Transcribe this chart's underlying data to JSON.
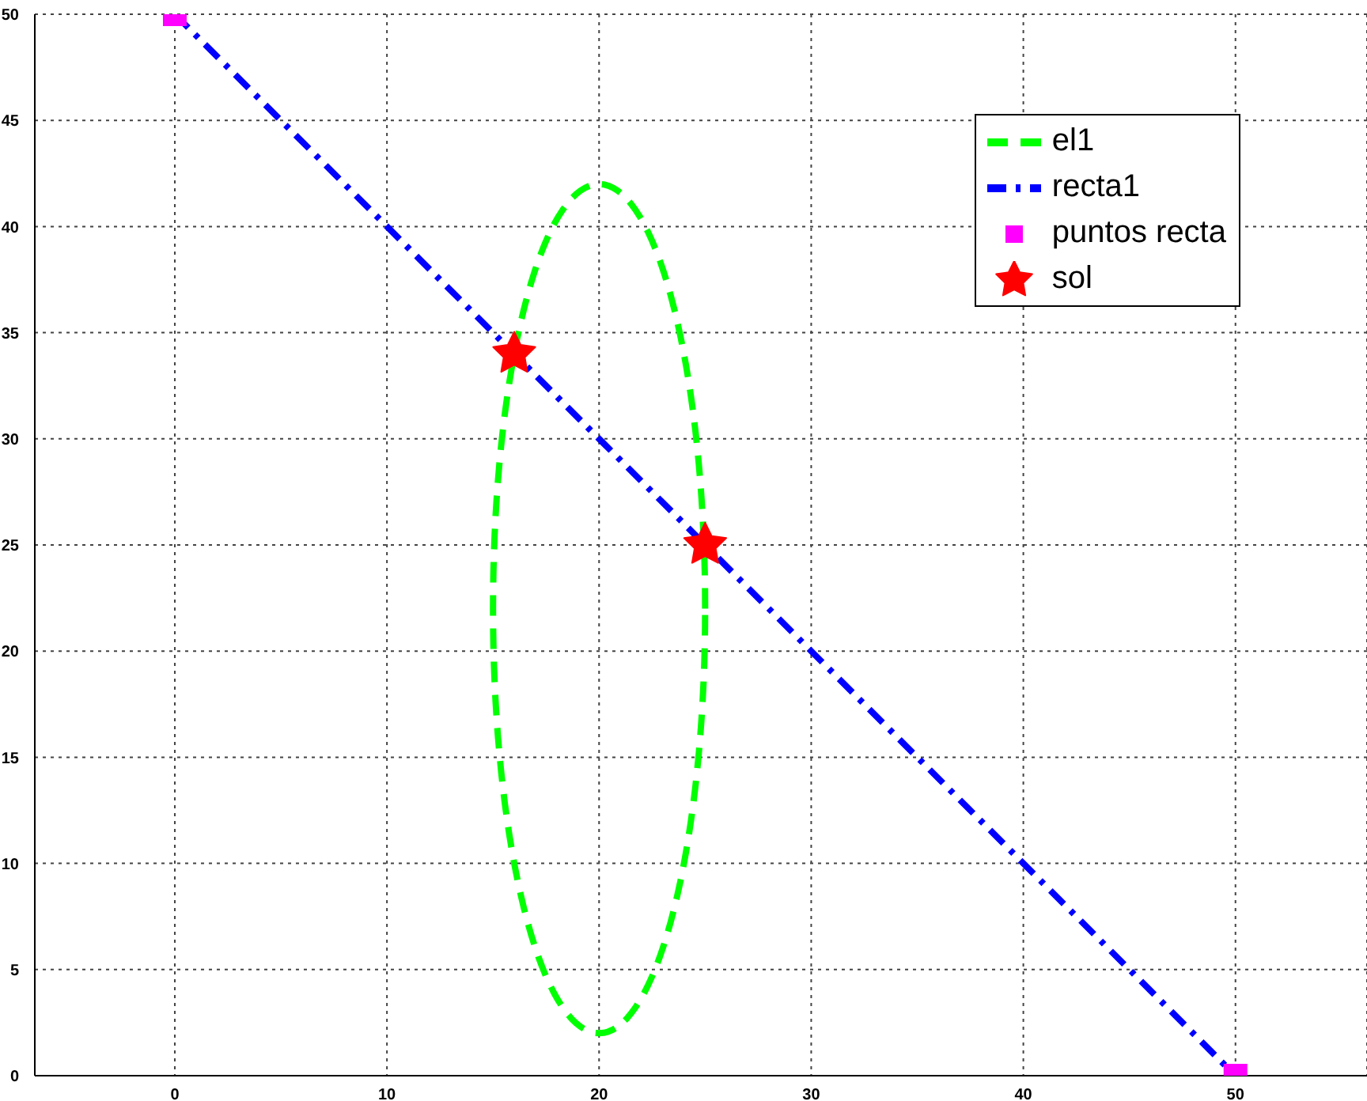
{
  "chart_data": {
    "type": "line",
    "xlim": [
      -6.6,
      56.2
    ],
    "ylim": [
      0,
      50
    ],
    "xticks": [
      0,
      10,
      20,
      30,
      40,
      50
    ],
    "yticks": [
      0,
      5,
      10,
      15,
      20,
      25,
      30,
      35,
      40,
      45,
      50
    ],
    "grid": true,
    "legend": "top right",
    "series": [
      {
        "name": "el1",
        "color": "#00ff00",
        "line_style": "dashed"
      },
      {
        "name": "recta1",
        "color": "#0000ff",
        "line_style": "dashdot",
        "marker": "none",
        "x": [
          0,
          50
        ],
        "values": [
          50,
          0
        ]
      },
      {
        "name": "puntos recta",
        "type": "scatter",
        "color": "#ff00ff",
        "marker": "square",
        "x": [
          0,
          50
        ],
        "values": [
          50,
          0
        ]
      },
      {
        "name": "sol",
        "type": "scatter",
        "color": "#ff0000",
        "marker": "star",
        "x": [
          16,
          25
        ],
        "values": [
          34,
          25
        ]
      }
    ]
  }
}
